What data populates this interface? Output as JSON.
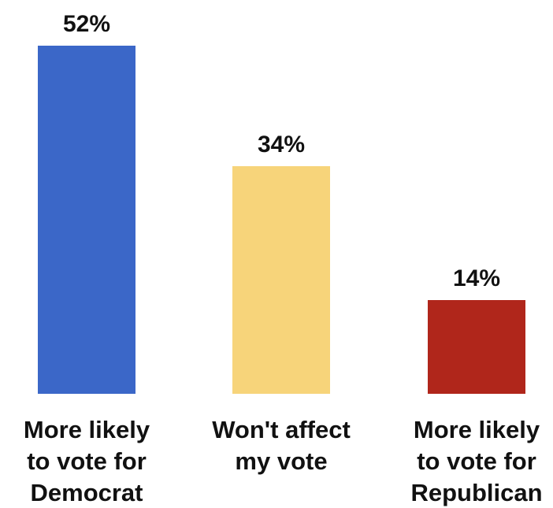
{
  "chart_data": {
    "type": "bar",
    "categories": [
      [
        "More likely",
        "to vote for",
        "Democrat"
      ],
      [
        "Won't affect",
        "my vote"
      ],
      [
        "More likely",
        "to vote for",
        "Republican"
      ]
    ],
    "values": [
      52,
      34,
      14
    ],
    "data_labels": [
      "52%",
      "34%",
      "14%"
    ],
    "colors": [
      "#3b67c8",
      "#f7d47a",
      "#b0261b"
    ],
    "ylim": [
      0,
      52
    ],
    "grid": false,
    "legend": "none",
    "title": "",
    "xlabel": "",
    "ylabel": ""
  }
}
